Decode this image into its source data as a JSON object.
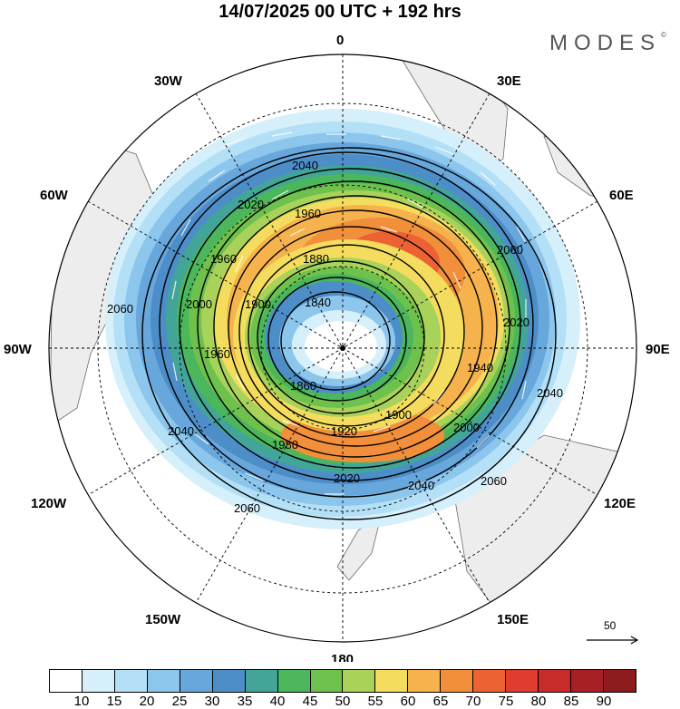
{
  "title": "14/07/2025  00 UTC  + 192 hrs",
  "brand": "MODES",
  "brand_mark": "©",
  "longitude_labels": {
    "n": "0",
    "s": "180",
    "e": "90E",
    "w": "90W",
    "ne30": "30E",
    "nw30": "30W",
    "ne60": "60E",
    "nw60": "60W",
    "se120": "120E",
    "sw120": "120W",
    "se150": "150E",
    "sw150": "150W"
  },
  "contour_labels": [
    "2040",
    "2020",
    "1960",
    "1960",
    "2060",
    "2060",
    "1880",
    "2000",
    "1900",
    "1840",
    "2020",
    "90W",
    "1960",
    "1860",
    "1920",
    "1940",
    "1980",
    "1900",
    "2000",
    "2040",
    "2040",
    "2020",
    "2040",
    "2060",
    "2060"
  ],
  "reference_vector": "50",
  "colorbar": {
    "colors": [
      "#ffffff",
      "#d5effb",
      "#b4e0f7",
      "#8cc6ec",
      "#67a7dc",
      "#4d8ec9",
      "#43a597",
      "#4bb65b",
      "#6ec14c",
      "#a8d25a",
      "#f4dc5e",
      "#f6b34d",
      "#f28f3b",
      "#ec6232",
      "#df3d2d",
      "#c92a2a",
      "#a91f26",
      "#8e1b1e"
    ],
    "labels": [
      "10",
      "15",
      "20",
      "25",
      "30",
      "35",
      "40",
      "45",
      "50",
      "55",
      "60",
      "65",
      "70",
      "75",
      "80",
      "85",
      "90"
    ]
  }
}
